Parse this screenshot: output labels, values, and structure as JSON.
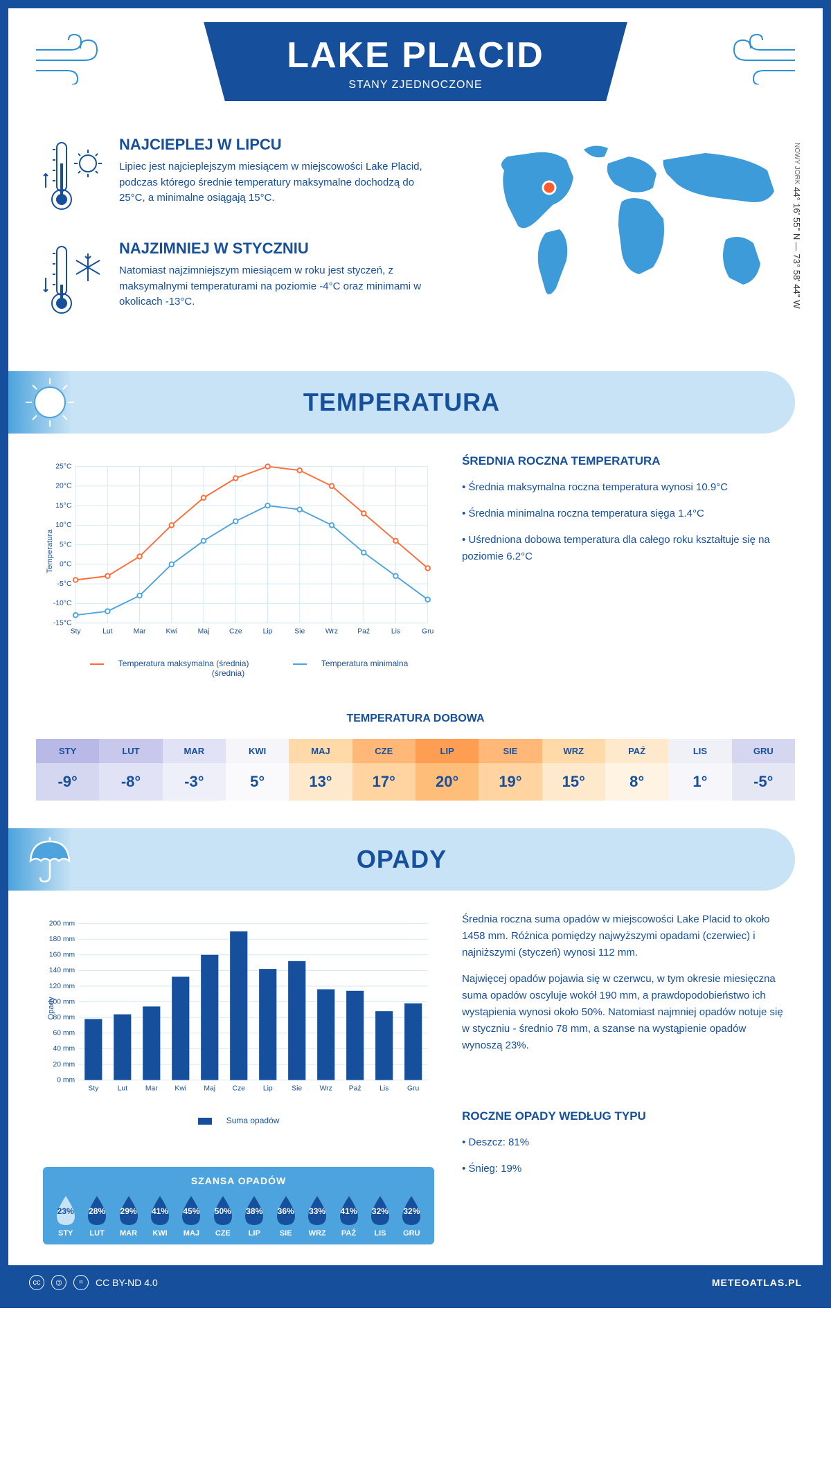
{
  "header": {
    "title": "LAKE PLACID",
    "subtitle": "STANY ZJEDNOCZONE",
    "coords": "44° 16' 55'' N — 73° 58' 44'' W",
    "coords_city": "NOWY JORK"
  },
  "intro": {
    "hot": {
      "title": "NAJCIEPLEJ W LIPCU",
      "text": "Lipiec jest najcieplejszym miesiącem w miejscowości Lake Placid, podczas którego średnie temperatury maksymalne dochodzą do 25°C, a minimalne osiągają 15°C."
    },
    "cold": {
      "title": "NAJZIMNIEJ W STYCZNIU",
      "text": "Natomiast najzimniejszym miesiącem w roku jest styczeń, z maksymalnymi temperaturami na poziomie -4°C oraz minimami w okolicach -13°C."
    }
  },
  "temp_section": {
    "title": "TEMPERATURA",
    "side_title": "ŚREDNIA ROCZNA TEMPERATURA",
    "side_p1": "• Średnia maksymalna roczna temperatura wynosi 10.9°C",
    "side_p2": "• Średnia minimalna roczna temperatura sięga 1.4°C",
    "side_p3": "• Uśredniona dobowa temperatura dla całego roku kształtuje się na poziomie 6.2°C",
    "legend_max": "Temperatura maksymalna (średnia)",
    "legend_min": "Temperatura minimalna (średnia)",
    "ylabel": "Temperatura",
    "chart": {
      "months": [
        "Sty",
        "Lut",
        "Mar",
        "Kwi",
        "Maj",
        "Cze",
        "Lip",
        "Sie",
        "Wrz",
        "Paź",
        "Lis",
        "Gru"
      ],
      "max": [
        -4,
        -3,
        2,
        10,
        17,
        22,
        25,
        24,
        20,
        13,
        6,
        -1
      ],
      "min": [
        -13,
        -12,
        -8,
        0,
        6,
        11,
        15,
        14,
        10,
        3,
        -3,
        -9
      ],
      "ylim": [
        -15,
        25
      ],
      "ytick_step": 5,
      "max_color": "#ff6b35",
      "min_color": "#4da3dd",
      "grid_color": "#d0e8f5",
      "bg": "#ffffff"
    }
  },
  "dobowa": {
    "title": "TEMPERATURA DOBOWA",
    "months": [
      "STY",
      "LUT",
      "MAR",
      "KWI",
      "MAJ",
      "CZE",
      "LIP",
      "SIE",
      "WRZ",
      "PAŹ",
      "LIS",
      "GRU"
    ],
    "values": [
      "-9°",
      "-8°",
      "-3°",
      "5°",
      "13°",
      "17°",
      "20°",
      "19°",
      "15°",
      "8°",
      "1°",
      "-5°"
    ],
    "head_colors": [
      "#b8b9e6",
      "#c7c8ec",
      "#e1e2f5",
      "#f5f5fa",
      "#ffd9a8",
      "#ffb877",
      "#ff9e52",
      "#ffb877",
      "#ffd9a8",
      "#ffe9cc",
      "#f0f0f7",
      "#d5d6ef"
    ],
    "body_colors": [
      "#d5d6ef",
      "#e1e2f5",
      "#efeff9",
      "#fafafc",
      "#ffe9cc",
      "#ffd4a0",
      "#ffbd7a",
      "#ffd4a0",
      "#ffe9cc",
      "#fff3e3",
      "#f7f7fb",
      "#e6e7f4"
    ]
  },
  "precip_section": {
    "title": "OPADY",
    "side_p1": "Średnia roczna suma opadów w miejscowości Lake Placid to około 1458 mm. Różnica pomiędzy najwyższymi opadami (czerwiec) i najniższymi (styczeń) wynosi 112 mm.",
    "side_p2": "Najwięcej opadów pojawia się w czerwcu, w tym okresie miesięczna suma opadów oscyluje wokół 190 mm, a prawdopodobieństwo ich wystąpienia wynosi około 50%. Natomiast najmniej opadów notuje się w styczniu - średnio 78 mm, a szanse na wystąpienie opadów wynoszą 23%.",
    "type_title": "ROCZNE OPADY WEDŁUG TYPU",
    "type_p1": "• Deszcz: 81%",
    "type_p2": "• Śnieg: 19%",
    "legend": "Suma opadów",
    "ylabel": "Opady",
    "chart": {
      "months": [
        "Sty",
        "Lut",
        "Mar",
        "Kwi",
        "Maj",
        "Cze",
        "Lip",
        "Sie",
        "Wrz",
        "Paź",
        "Lis",
        "Gru"
      ],
      "values": [
        78,
        84,
        94,
        132,
        160,
        190,
        142,
        152,
        116,
        114,
        88,
        98
      ],
      "ylim": [
        0,
        200
      ],
      "ytick_step": 20,
      "bar_color": "#164f9c",
      "grid_color": "#d0e8f5"
    },
    "chance": {
      "title": "SZANSA OPADÓW",
      "months": [
        "STY",
        "LUT",
        "MAR",
        "KWI",
        "MAJ",
        "CZE",
        "LIP",
        "SIE",
        "WRZ",
        "PAŹ",
        "LIS",
        "GRU"
      ],
      "values": [
        "23%",
        "28%",
        "29%",
        "41%",
        "45%",
        "50%",
        "38%",
        "36%",
        "33%",
        "41%",
        "32%",
        "32%"
      ],
      "drop_fill": "#164f9c",
      "first_drop_fill": "#c7e3f5"
    }
  },
  "footer": {
    "license": "CC BY-ND 4.0",
    "brand": "METEOATLAS.PL"
  },
  "colors": {
    "primary": "#164f9c",
    "accent": "#4da3dd",
    "light": "#c7e3f5",
    "orange": "#ff6b35",
    "text": "#164f9c"
  }
}
